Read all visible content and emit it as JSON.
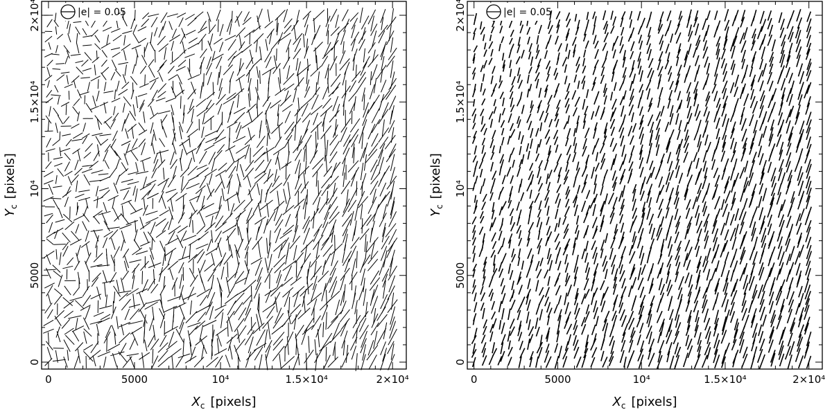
{
  "chart_data": [
    {
      "type": "scatter",
      "title": "",
      "x": {
        "tick_values": [
          0,
          5000,
          10000,
          15000,
          20000
        ],
        "tick_labels": [
          "0",
          "5000",
          "10⁴",
          "1.5×10⁴",
          "2×10⁴"
        ],
        "label": "X",
        "label_subscript": "c",
        "label_unit": "[pixels]",
        "lim": [
          -400,
          20800
        ]
      },
      "y": {
        "tick_values": [
          0,
          5000,
          10000,
          15000,
          20000
        ],
        "tick_labels": [
          "0",
          "5000",
          "10⁴",
          "1.5×10⁴",
          "2×10⁴"
        ],
        "label": "Y",
        "label_subscript": "c",
        "label_unit": "[pixels]",
        "lim": [
          -400,
          20800
        ]
      },
      "legend": {
        "text": "|e| = 0.05",
        "placement": "top-left"
      },
      "field": {
        "grid_cols": 37,
        "grid_rows": 45,
        "jitter": 150,
        "x_range": [
          0,
          20000
        ],
        "y_range": [
          0,
          20000
        ],
        "base_angle_deg": 68,
        "angle_spread_deg": 60,
        "min_length_px": 8,
        "max_length_px": 24,
        "stroke_width": 1.0,
        "seed": 11
      },
      "grid": false
    },
    {
      "type": "scatter",
      "title": "",
      "x": {
        "tick_values": [
          0,
          5000,
          10000,
          15000,
          20000
        ],
        "tick_labels": [
          "0",
          "5000",
          "10⁴",
          "1.5×10⁴",
          "2×10⁴"
        ],
        "label": "X",
        "label_subscript": "c",
        "label_unit": "[pixels]",
        "lim": [
          -400,
          20800
        ]
      },
      "y": {
        "tick_values": [
          0,
          5000,
          10000,
          15000,
          20000
        ],
        "tick_labels": [
          "0",
          "5000",
          "10⁴",
          "1.5×10⁴",
          "2×10⁴"
        ],
        "label": "Y",
        "label_subscript": "c",
        "label_unit": "[pixels]",
        "lim": [
          -400,
          20800
        ]
      },
      "legend": {
        "text": "|e| = 0.05",
        "placement": "top-left"
      },
      "field": {
        "grid_cols": 37,
        "grid_rows": 45,
        "jitter": 150,
        "x_range": [
          0,
          20000
        ],
        "y_range": [
          0,
          20000
        ],
        "base_angle_deg": 72,
        "angle_spread_deg": 8,
        "min_length_px": 7,
        "max_length_px": 20,
        "stroke_width": 1.6,
        "seed": 23
      },
      "grid": false
    }
  ]
}
